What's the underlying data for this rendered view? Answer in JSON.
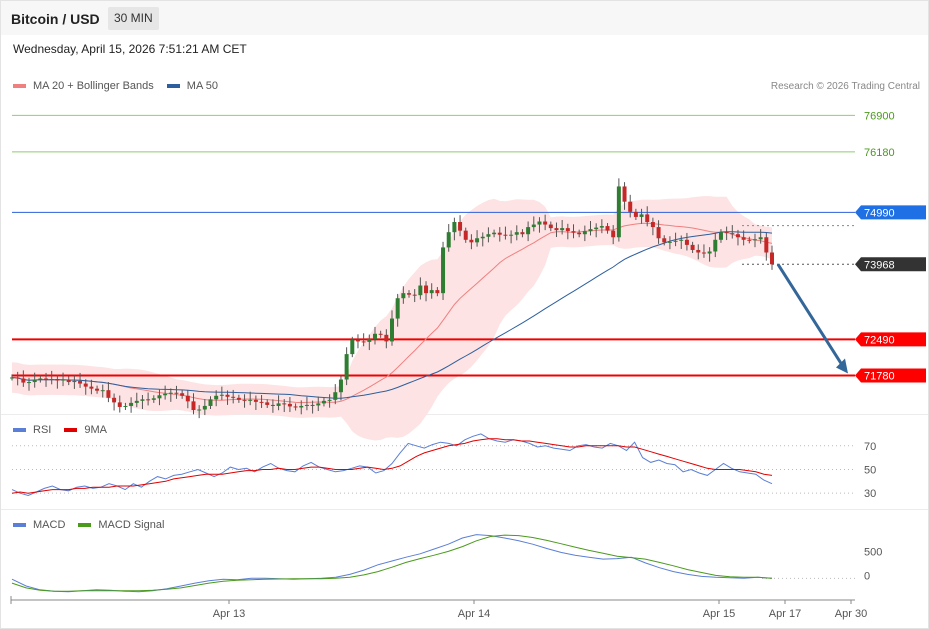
{
  "header": {
    "title": "Bitcoin / USD",
    "timeframe": "30 MIN",
    "datetime": "Wednesday, April 15, 2026 7:51:21 AM CET"
  },
  "legend": {
    "main": [
      {
        "label": "MA 20 + Bollinger Bands",
        "color": "#f08080"
      },
      {
        "label": "MA 50",
        "color": "#2d5f9e"
      }
    ],
    "rsi": [
      {
        "label": "RSI",
        "color": "#5b7fd6"
      },
      {
        "label": "9MA",
        "color": "#e00000"
      }
    ],
    "macd": [
      {
        "label": "MACD",
        "color": "#5b7fd6"
      },
      {
        "label": "MACD Signal",
        "color": "#4a9a1c"
      }
    ]
  },
  "credit": "Research © 2026 Trading Central",
  "chart_data": [
    {
      "type": "candlestick",
      "panel": "price",
      "ylim": [
        71100,
        77300
      ],
      "price_levels": [
        {
          "value": 76900,
          "label": "76900",
          "style": "green-line"
        },
        {
          "value": 76180,
          "label": "76180",
          "style": "green-line"
        },
        {
          "value": 74990,
          "label": "74990",
          "style": "blue-tag"
        },
        {
          "value": 73968,
          "label": "73968",
          "style": "current-price-tag"
        },
        {
          "value": 72490,
          "label": "72490",
          "style": "red-tag"
        },
        {
          "value": 71780,
          "label": "71780",
          "style": "red-tag"
        }
      ],
      "forecast_arrow": {
        "from": 73968,
        "to": 71780
      },
      "close_series": [
        71740,
        71720,
        71640,
        71650,
        71700,
        71720,
        71690,
        71710,
        71680,
        71700,
        71650,
        71670,
        71620,
        71560,
        71520,
        71480,
        71490,
        71340,
        71250,
        71160,
        71180,
        71240,
        71280,
        71310,
        71300,
        71330,
        71390,
        71420,
        71440,
        71430,
        71380,
        71270,
        71100,
        71110,
        71180,
        71310,
        71380,
        71400,
        71360,
        71340,
        71300,
        71280,
        71300,
        71260,
        71250,
        71200,
        71180,
        71230,
        71220,
        71170,
        71150,
        71180,
        71200,
        71190,
        71230,
        71280,
        71300,
        71450,
        71700,
        72200,
        72480,
        72450,
        72440,
        72500,
        72600,
        72580,
        72450,
        72900,
        73300,
        73400,
        73370,
        73360,
        73550,
        73400,
        73460,
        73400,
        74300,
        74600,
        74800,
        74630,
        74450,
        74400,
        74480,
        74510,
        74560,
        74590,
        74550,
        74540,
        74550,
        74600,
        74560,
        74700,
        74750,
        74810,
        74750,
        74680,
        74640,
        74680,
        74620,
        74590,
        74560,
        74620,
        74660,
        74690,
        74720,
        74630,
        74500,
        75500,
        75200,
        75000,
        74900,
        74950,
        74800,
        74700,
        74480,
        74400,
        74410,
        74430,
        74450,
        74350,
        74250,
        74200,
        74180,
        74220,
        74450,
        74600,
        74580,
        74560,
        74500,
        74450,
        74440,
        74460,
        74500,
        74200,
        73968
      ]
    },
    {
      "type": "line",
      "panel": "rsi",
      "reference_levels": [
        70,
        50,
        30
      ],
      "ylim": [
        20,
        85
      ],
      "series": [
        {
          "name": "RSI",
          "values": [
            33,
            30,
            28,
            31,
            34,
            36,
            33,
            32,
            35,
            36,
            34,
            35,
            38,
            36,
            33,
            38,
            35,
            40,
            44,
            42,
            45,
            46,
            48,
            50,
            47,
            44,
            47,
            52,
            50,
            51,
            48,
            52,
            55,
            51,
            49,
            48,
            53,
            56,
            52,
            50,
            48,
            49,
            51,
            53,
            52,
            47,
            49,
            55,
            64,
            72,
            70,
            68,
            71,
            73,
            72,
            70,
            75,
            78,
            80,
            76,
            74,
            73,
            75,
            74,
            72,
            69,
            70,
            68,
            67,
            66,
            70,
            71,
            69,
            68,
            72,
            70,
            66,
            73,
            60,
            56,
            58,
            55,
            54,
            48,
            50,
            47,
            45,
            50,
            55,
            51,
            48,
            47,
            46,
            41,
            38
          ]
        },
        {
          "name": "9MA",
          "values": [
            30,
            31,
            30,
            31,
            32,
            33,
            33,
            33,
            34,
            34,
            35,
            35,
            35,
            36,
            36,
            36,
            37,
            38,
            39,
            40,
            42,
            43,
            44,
            45,
            46,
            46,
            46,
            47,
            48,
            49,
            49,
            50,
            50,
            51,
            50,
            50,
            51,
            52,
            52,
            51,
            50,
            50,
            50,
            51,
            52,
            51,
            50,
            51,
            53,
            57,
            61,
            64,
            66,
            68,
            70,
            71,
            72,
            74,
            75,
            76,
            76,
            75,
            75,
            74,
            74,
            73,
            72,
            71,
            70,
            69,
            69,
            70,
            70,
            70,
            70,
            70,
            69,
            69,
            67,
            65,
            63,
            61,
            59,
            57,
            55,
            53,
            51,
            50,
            50,
            50,
            50,
            49,
            48,
            46,
            45
          ]
        }
      ]
    },
    {
      "type": "line",
      "panel": "macd",
      "reference_levels": [
        500,
        0
      ],
      "ylim": [
        -450,
        1050
      ],
      "series": [
        {
          "name": "MACD",
          "values": [
            -80,
            -220,
            -300,
            -330,
            -340,
            -320,
            -300,
            -310,
            -330,
            -340,
            -320,
            -280,
            -220,
            -160,
            -110,
            -80,
            -90,
            -60,
            -60,
            -70,
            -80,
            -70,
            -60,
            -40,
            20,
            110,
            220,
            300,
            380,
            450,
            550,
            650,
            780,
            850,
            830,
            780,
            720,
            650,
            560,
            480,
            420,
            380,
            340,
            350,
            380,
            260,
            160,
            80,
            20,
            -20,
            -40,
            -50,
            -60,
            -40,
            -60
          ]
        },
        {
          "name": "MACD Signal",
          "values": [
            -160,
            -260,
            -310,
            -330,
            -330,
            -320,
            -320,
            -320,
            -320,
            -320,
            -310,
            -290,
            -260,
            -210,
            -160,
            -120,
            -100,
            -90,
            -80,
            -75,
            -70,
            -70,
            -70,
            -60,
            -40,
            10,
            80,
            170,
            270,
            350,
            420,
            500,
            600,
            720,
            810,
            840,
            830,
            790,
            730,
            660,
            590,
            520,
            460,
            400,
            370,
            340,
            270,
            200,
            120,
            60,
            0,
            -30,
            -40,
            -40,
            -60
          ]
        }
      ]
    },
    {
      "type": "axis",
      "panel": "time",
      "tick_labels": [
        "Apr 13",
        "Apr 14",
        "Apr 15",
        "Apr 17",
        "Apr 30"
      ]
    }
  ]
}
